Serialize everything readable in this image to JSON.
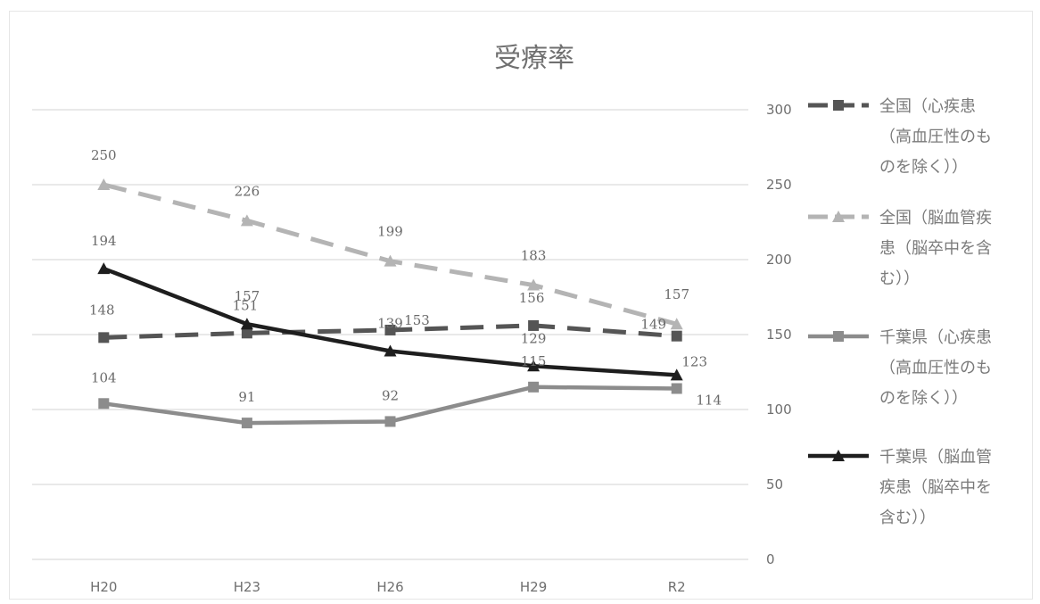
{
  "chart_data": {
    "type": "line",
    "title": "受療率",
    "categories": [
      "H20",
      "H23",
      "H26",
      "H29",
      "R2"
    ],
    "ylim": [
      0,
      300
    ],
    "yticks": [
      0,
      50,
      100,
      150,
      200,
      250,
      300
    ],
    "y_axis_side": "right",
    "grid": true,
    "legend_position": "right",
    "series": [
      {
        "name": "全国（心疾患（高血圧性のものを除く））",
        "legend_lines": [
          "全国（心疾患",
          "（高血圧性のも",
          "のを除く））"
        ],
        "values": [
          148,
          151,
          153,
          156,
          149
        ],
        "color": "#555555",
        "dash": "dashed",
        "marker": "square"
      },
      {
        "name": "全国（脳血管疾患（脳卒中を含む））",
        "legend_lines": [
          "全国（脳血管疾",
          "患（脳卒中を含",
          "む））"
        ],
        "values": [
          250,
          226,
          199,
          183,
          157
        ],
        "color": "#b4b4b4",
        "dash": "dashed",
        "marker": "triangle"
      },
      {
        "name": "千葉県（心疾患（高血圧性のものを除く））",
        "legend_lines": [
          "千葉県（心疾患",
          "（高血圧性のも",
          "のを除く））"
        ],
        "values": [
          104,
          91,
          92,
          115,
          114
        ],
        "color": "#8c8c8c",
        "dash": "solid",
        "marker": "square"
      },
      {
        "name": "千葉県（脳血管疾患（脳卒中を含む））",
        "legend_lines": [
          "千葉県（脳血管",
          "疾患（脳卒中を",
          "含む））"
        ],
        "values": [
          194,
          157,
          139,
          129,
          123
        ],
        "color": "#1e1e1e",
        "dash": "solid",
        "marker": "triangle"
      }
    ]
  }
}
